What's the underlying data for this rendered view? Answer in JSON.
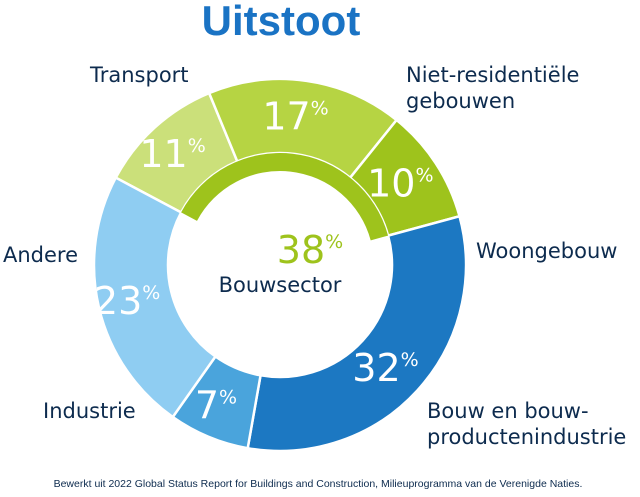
{
  "chart_data": {
    "type": "pie",
    "style": "donut",
    "title": "Uitstoot",
    "slices": [
      {
        "label": "Niet-residentiële gebouwen",
        "label_lines": [
          "Niet-residentiële",
          "gebouwen"
        ],
        "value": 11,
        "value_label": "11",
        "color": "#cbe07a",
        "group": "Bouwsector"
      },
      {
        "label": "Woongebouw",
        "label_lines": [
          "Woongebouw"
        ],
        "value": 17,
        "value_label": "17",
        "color": "#b6d443",
        "group": "Bouwsector"
      },
      {
        "label": "Bouw en bouwproductenindustrie",
        "label_lines": [
          "Bouw en bouw-",
          "productenindustrie"
        ],
        "value": 10,
        "value_label": "10",
        "color": "#9ec31c",
        "group": "Bouwsector"
      },
      {
        "label": "Industrie",
        "label_lines": [
          "Industrie"
        ],
        "value": 32,
        "value_label": "32",
        "color": "#1c78c2",
        "group": null
      },
      {
        "label": "Andere",
        "label_lines": [
          "Andere"
        ],
        "value": 7,
        "value_label": "7",
        "color": "#4aa4dc",
        "group": null
      },
      {
        "label": "Transport",
        "label_lines": [
          "Transport"
        ],
        "value": 23,
        "value_label": "23",
        "color": "#8fcdf2",
        "group": null
      }
    ],
    "percent_sign": "%",
    "group_summary": {
      "name": "Bouwsector",
      "value": 38,
      "value_label": "38",
      "color": "#9ec31c"
    },
    "source_note": "Bewerkt uit 2022 Global Status Report for Buildings and Construction, Milieuprogramma van de Verenigde Naties."
  }
}
